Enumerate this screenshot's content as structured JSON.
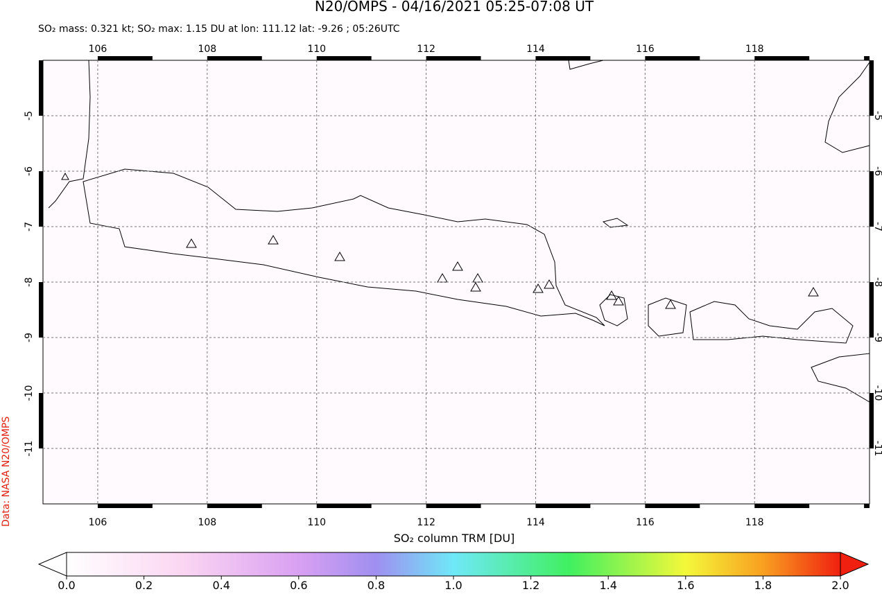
{
  "chart_data": {
    "type": "map",
    "title": "N20/OMPS - 04/16/2021 05:25-07:08 UT",
    "subtitle": "SO₂ mass: 0.321 kt; SO₂ max: 1.15 DU at lon: 111.12 lat: -9.26 ; 05:26UTC",
    "credit": "Data: NASA N20/OMPS",
    "colorbar_label": "SO₂ column TRM [DU]",
    "xlim": [
      105,
      120.1
    ],
    "ylim": [
      -12,
      -4
    ],
    "xticks": [
      106,
      108,
      110,
      112,
      114,
      116,
      118
    ],
    "yticks": [
      -5,
      -6,
      -7,
      -8,
      -9,
      -10,
      -11
    ],
    "grid": true,
    "colorbar_lim": [
      0,
      2
    ],
    "colorbar_ticks": [
      {
        "value": 0,
        "label": "0.0"
      },
      {
        "value": 0.2,
        "label": "0.2"
      },
      {
        "value": 0.4,
        "label": "0.4"
      },
      {
        "value": 0.6,
        "label": "0.6"
      },
      {
        "value": 0.8,
        "label": "0.8"
      },
      {
        "value": 1,
        "label": "1.0"
      },
      {
        "value": 1.2,
        "label": "1.2"
      },
      {
        "value": 1.4,
        "label": "1.4"
      },
      {
        "value": 1.6,
        "label": "1.6"
      },
      {
        "value": 1.8,
        "label": "1.8"
      },
      {
        "value": 2,
        "label": "2.0"
      }
    ]
  }
}
